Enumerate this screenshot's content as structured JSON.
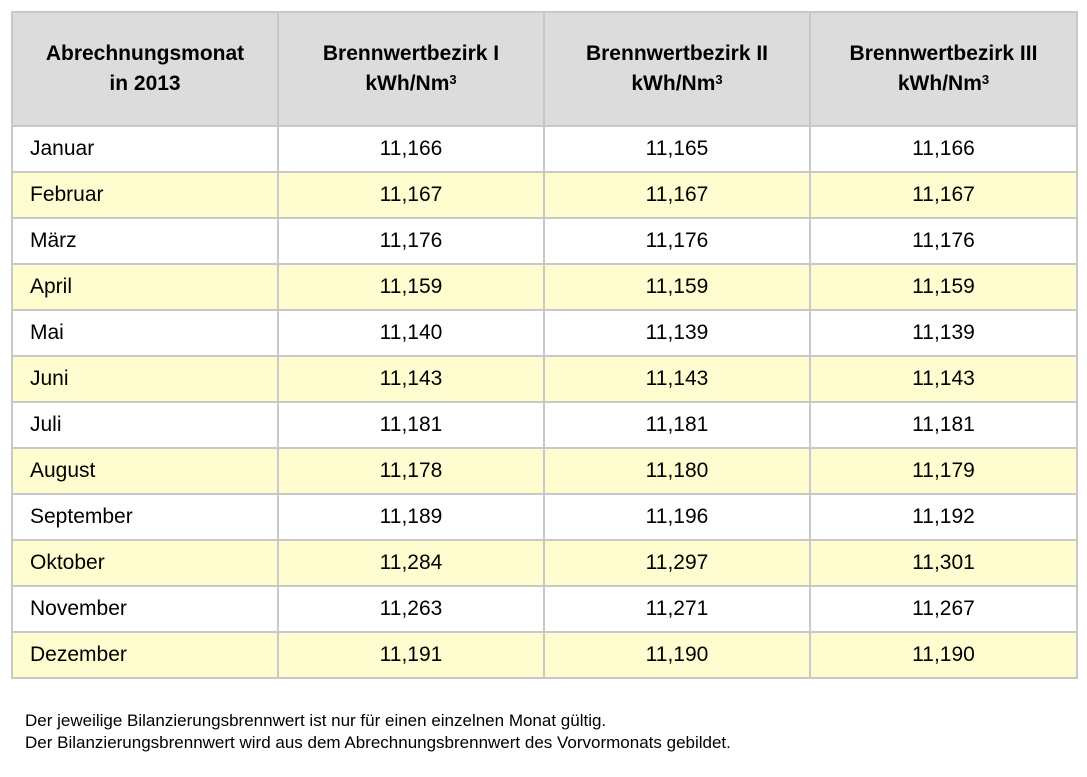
{
  "table": {
    "header": {
      "month": [
        "Abrechnungsmonat",
        "in 2013"
      ],
      "bezirk1": [
        "Brennwertbezirk I",
        "kWh/Nm",
        "3"
      ],
      "bezirk2": [
        "Brennwertbezirk II",
        "kWh/Nm",
        "3"
      ],
      "bezirk3": [
        "Brennwertbezirk III",
        "kWh/Nm",
        "3"
      ]
    },
    "rows": [
      {
        "month": "Januar",
        "b1": "11,166",
        "b2": "11,165",
        "b3": "11,166"
      },
      {
        "month": "Februar",
        "b1": "11,167",
        "b2": "11,167",
        "b3": "11,167"
      },
      {
        "month": "März",
        "b1": "11,176",
        "b2": "11,176",
        "b3": "11,176"
      },
      {
        "month": "April",
        "b1": "11,159",
        "b2": "11,159",
        "b3": "11,159"
      },
      {
        "month": "Mai",
        "b1": "11,140",
        "b2": "11,139",
        "b3": "11,139"
      },
      {
        "month": "Juni",
        "b1": "11,143",
        "b2": "11,143",
        "b3": "11,143"
      },
      {
        "month": "Juli",
        "b1": "11,181",
        "b2": "11,181",
        "b3": "11,181"
      },
      {
        "month": "August",
        "b1": "11,178",
        "b2": "11,180",
        "b3": "11,179"
      },
      {
        "month": "September",
        "b1": "11,189",
        "b2": "11,196",
        "b3": "11,192"
      },
      {
        "month": "Oktober",
        "b1": "11,284",
        "b2": "11,297",
        "b3": "11,301"
      },
      {
        "month": "November",
        "b1": "11,263",
        "b2": "11,271",
        "b3": "11,267"
      },
      {
        "month": "Dezember",
        "b1": "11,191",
        "b2": "11,190",
        "b3": "11,190"
      }
    ]
  },
  "colors": {
    "header_bg": "#dcdcdc",
    "row_alt_bg": "#fffdd0",
    "row_bg": "#ffffff",
    "border": "#c8c8c8"
  },
  "footnotes": [
    "Der jeweilige Bilanzierungsbrennwert ist nur für einen einzelnen Monat gültig.",
    "Der Bilanzierungsbrennwert wird aus dem Abrechnungsbrennwert des Vorvormonats gebildet."
  ]
}
